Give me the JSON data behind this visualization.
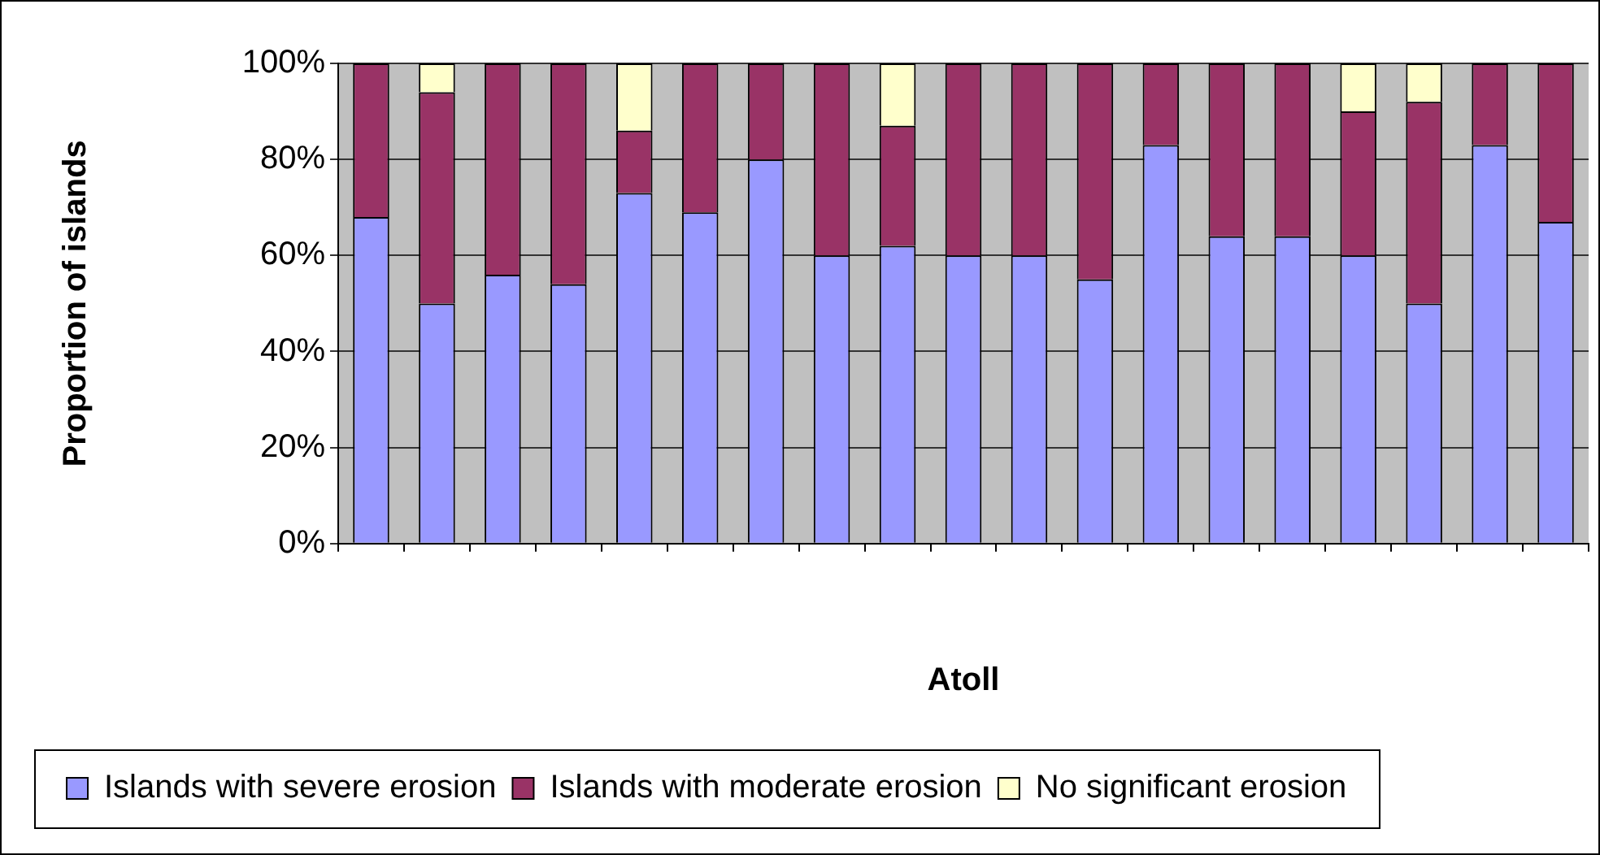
{
  "chart_data": {
    "type": "bar",
    "stacked": true,
    "xlabel": "Atoll",
    "ylabel": "Proportion of islands",
    "categories": [
      null,
      null,
      null,
      null,
      null,
      null,
      null,
      null,
      null,
      null,
      null,
      null,
      null,
      null,
      null,
      null,
      null,
      null,
      null
    ],
    "series": [
      {
        "name": "Islands with severe erosion",
        "color": "#9999ff",
        "values": [
          68,
          50,
          56,
          54,
          73,
          69,
          80,
          60,
          62,
          60,
          60,
          55,
          83,
          64,
          64,
          60,
          50,
          83,
          67
        ]
      },
      {
        "name": "Islands with moderate erosion",
        "color": "#993366",
        "values": [
          32,
          44,
          44,
          46,
          13,
          31,
          20,
          40,
          25,
          40,
          40,
          45,
          17,
          36,
          36,
          30,
          42,
          17,
          33
        ]
      },
      {
        "name": "No significant erosion",
        "color": "#ffffcc",
        "values": [
          0,
          6,
          0,
          0,
          14,
          0,
          0,
          0,
          13,
          0,
          0,
          0,
          0,
          0,
          0,
          10,
          8,
          0,
          0
        ]
      }
    ],
    "ylim": [
      0,
      100
    ],
    "yticks": [
      {
        "value": 0,
        "label": "0%"
      },
      {
        "value": 20,
        "label": "20%"
      },
      {
        "value": 40,
        "label": "40%"
      },
      {
        "value": 60,
        "label": "60%"
      },
      {
        "value": 80,
        "label": "80%"
      },
      {
        "value": 100,
        "label": "100%"
      }
    ],
    "grid": "y",
    "legend": "bottom"
  }
}
